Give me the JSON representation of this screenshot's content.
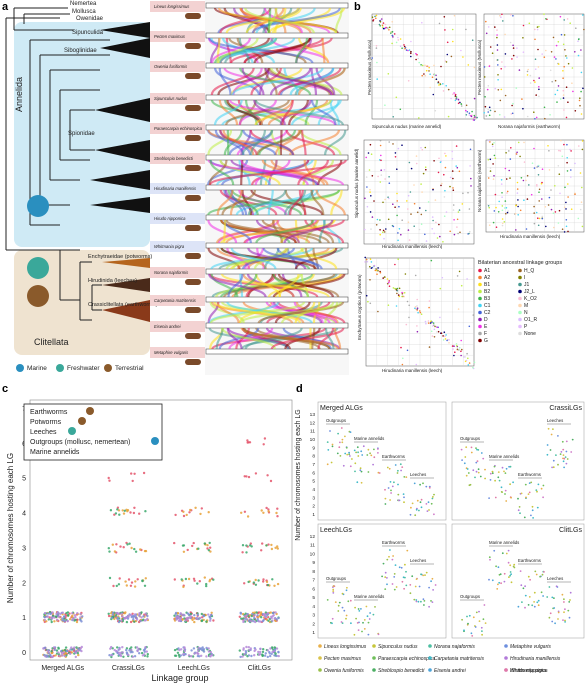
{
  "panel_a": {
    "letter": "a",
    "tree_tips": [
      "Nemertea",
      "Mollusca",
      "Owenidae",
      "Sipunculida",
      "Siboglinidae",
      "Spionidae",
      "Enchytraeidae (potworms)",
      "Hirudinida (leeches)",
      "Crassiclitellata (earthworms)"
    ],
    "clade_labels": [
      "Annelida",
      "Clitellata"
    ],
    "legend": [
      "Marine",
      "Freshwater",
      "Terrestrial"
    ],
    "species": [
      "Lineus longissimus",
      "Pecten maximus",
      "Owenia fusiformis",
      "Sipunculus nudus",
      "Paraescarpia echinospica",
      "Streblospio benedicti",
      "Hirudinaria manillensis",
      "Hirudo nipponica",
      "Whitmania pigra",
      "Norana najaformis",
      "Carpetania matritensis",
      "Eisenia andrei",
      "Metaphire vulgaris"
    ],
    "colors": {
      "marine": "#cfeaf5",
      "clitellata": "#efe3d0",
      "marine_icon": "#2a8fbf",
      "freshwater_icon": "#3aa89a",
      "terrestrial_icon": "#8a5a2b"
    }
  },
  "panel_b": {
    "letter": "b",
    "plots": [
      {
        "x": "Sipunculus nudus (marine annelid)",
        "y": "Pecten maximus (Mollusca)"
      },
      {
        "x": "Norana najaformis (earthworm)",
        "y": "Pecten maximus (Mollusca)"
      },
      {
        "x": "Hirudinaria manillensis (leech)",
        "y": "Sipunculus nudus (marine annelid)"
      },
      {
        "x": "Hirudinaria manillensis (leech)",
        "y": "Norana najaformis (earthworm)"
      },
      {
        "x": "Hirudinaria manillensis (leech)",
        "y": "Enchytraeus crypticus (potworm)"
      }
    ],
    "legend_title": "Bilaterian ancestral linkage groups",
    "legend_items": [
      "A1",
      "A2",
      "B1",
      "B2",
      "B3",
      "C1",
      "C2",
      "D",
      "E",
      "F",
      "G",
      "H_Q",
      "I",
      "J1",
      "J2_L",
      "K_O2",
      "M",
      "N",
      "O1_R",
      "P",
      "None"
    ],
    "legend_colors": [
      "#e6194b",
      "#f58231",
      "#ffe119",
      "#bfef45",
      "#3cb44b",
      "#42d4f4",
      "#4363d8",
      "#911eb4",
      "#f032e6",
      "#a9a9a9",
      "#800000",
      "#9a6324",
      "#808000",
      "#469990",
      "#000075",
      "#fabed4",
      "#ffd8b1",
      "#aaffc3",
      "#dcbeff",
      "#e6beff",
      "#dddddd"
    ]
  },
  "panel_c": {
    "letter": "c",
    "legend": [
      "Earthworms",
      "Potworms",
      "Leeches",
      "Outgroups (mollusc, nemertean)",
      "Marine annelids"
    ],
    "chart_data": {
      "type": "scatter",
      "title": "",
      "xlabel": "Linkage group",
      "ylabel": "Number of chromosomes hosting each LG",
      "categories": [
        "Merged ALGs",
        "CrassiLGs",
        "LeechLGs",
        "ClitLGs"
      ],
      "ylim": [
        0,
        7
      ],
      "yticks": [
        0,
        1,
        2,
        3,
        4,
        5,
        6,
        7
      ],
      "series": [
        {
          "name": "Earthworms",
          "color": "#e4556b",
          "values_by_category": [
            [
              0,
              1
            ],
            [
              1,
              2,
              3,
              4,
              5,
              6
            ],
            [
              1,
              2,
              3,
              4
            ],
            [
              1,
              2,
              3,
              4,
              5,
              6
            ]
          ]
        },
        {
          "name": "Potworms",
          "color": "#e7a23a",
          "values_by_category": [
            [
              0,
              1
            ],
            [
              1,
              2,
              3,
              4
            ],
            [
              1,
              2,
              3,
              4
            ],
            [
              1,
              2,
              3,
              4
            ]
          ]
        },
        {
          "name": "Leeches",
          "color": "#3aa86b",
          "values_by_category": [
            [
              0,
              1
            ],
            [
              0,
              1,
              2,
              3,
              4
            ],
            [
              0,
              1,
              2,
              3
            ],
            [
              0,
              1,
              2,
              3
            ]
          ]
        },
        {
          "name": "Outgroups (mollusc, nemertean)",
          "color": "#7d8fd6",
          "values_by_category": [
            [
              0,
              1
            ],
            [
              0,
              1
            ],
            [
              0,
              1
            ],
            [
              0,
              1
            ]
          ]
        },
        {
          "name": "Marine annelids",
          "color": "#b58ad8",
          "values_by_category": [
            [
              0,
              1
            ],
            [
              0,
              1
            ],
            [
              0,
              1
            ],
            [
              0,
              1
            ]
          ]
        }
      ]
    }
  },
  "panel_d": {
    "letter": "d",
    "ylabel": "Number of chromosomes hosting each LG",
    "subplots": [
      {
        "title": "Merged ALGs",
        "groups": [
          "Outgroups",
          "Marine annelids",
          "Earthworms",
          "Leeches"
        ]
      },
      {
        "title": "CrassiLGs",
        "groups": [
          "Outgroups",
          "Marine annelids",
          "Earthworms",
          "Leeches"
        ]
      },
      {
        "title": "LeechLGs",
        "groups": [
          "Outgroups",
          "Marine annelids",
          "Earthworms",
          "Leeches"
        ]
      },
      {
        "title": "ClitLGs",
        "groups": [
          "Outgroups",
          "Marine annelids",
          "Earthworms",
          "Leeches"
        ]
      }
    ],
    "yticks_top": [
      "1",
      "2",
      "3",
      "4",
      "5",
      "6",
      "7",
      "8",
      "9",
      "10",
      "11",
      "12",
      "13"
    ],
    "yticks_bottom": [
      "1",
      "2",
      "3",
      "4",
      "5",
      "6",
      "7",
      "8",
      "9",
      "10",
      "11",
      "12"
    ],
    "species_legend": [
      {
        "name": "Lineus longissimus",
        "color": "#e8b04a"
      },
      {
        "name": "Pecten maximus",
        "color": "#d9c34a"
      },
      {
        "name": "Owenia fusiformis",
        "color": "#9ac04a"
      },
      {
        "name": "Sipunculus nudus",
        "color": "#c6c63a"
      },
      {
        "name": "Paraescarpia echinospica",
        "color": "#6fbf5a"
      },
      {
        "name": "Streblospio benedicti",
        "color": "#4cae63"
      },
      {
        "name": "Norana najaformis",
        "color": "#4cbfa2"
      },
      {
        "name": "Carpetania matritensis",
        "color": "#3fb9c9"
      },
      {
        "name": "Eisenia andrei",
        "color": "#4ea4d9"
      },
      {
        "name": "Metaphire vulgaris",
        "color": "#6d8fdf"
      },
      {
        "name": "Hirudinaria manillensis",
        "color": "#b27ad9"
      },
      {
        "name": "Hirudo nipponica",
        "color": "#d07bc9"
      },
      {
        "name": "Whitmania pigra",
        "color": "#e07aa8"
      }
    ]
  }
}
